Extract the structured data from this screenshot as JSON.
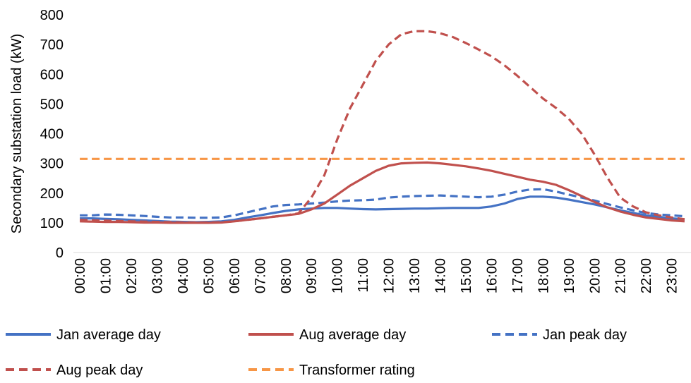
{
  "chart_data": {
    "type": "line",
    "title": "",
    "xlabel": "",
    "ylabel": "Secondary substation load (kW)",
    "ylim": [
      0,
      800
    ],
    "yticks": [
      0,
      100,
      200,
      300,
      400,
      500,
      600,
      700,
      800
    ],
    "grid": false,
    "legend_position": "bottom",
    "x": [
      "00:00",
      "00:30",
      "01:00",
      "01:30",
      "02:00",
      "02:30",
      "03:00",
      "03:30",
      "04:00",
      "04:30",
      "05:00",
      "05:30",
      "06:00",
      "06:30",
      "07:00",
      "07:30",
      "08:00",
      "08:30",
      "09:00",
      "09:30",
      "10:00",
      "10:30",
      "11:00",
      "11:30",
      "12:00",
      "12:30",
      "13:00",
      "13:30",
      "14:00",
      "14:30",
      "15:00",
      "15:30",
      "16:00",
      "16:30",
      "17:00",
      "17:30",
      "18:00",
      "18:30",
      "19:00",
      "19:30",
      "20:00",
      "20:30",
      "21:00",
      "21:30",
      "22:00",
      "22:30",
      "23:00",
      "23:30"
    ],
    "xticks": [
      "00:00",
      "01:00",
      "02:00",
      "03:00",
      "04:00",
      "05:00",
      "06:00",
      "07:00",
      "08:00",
      "09:00",
      "10:00",
      "11:00",
      "12:00",
      "13:00",
      "14:00",
      "15:00",
      "16:00",
      "17:00",
      "18:00",
      "19:00",
      "20:00",
      "21:00",
      "22:00",
      "23:00"
    ],
    "series": [
      {
        "name": "Jan average day",
        "color": "#4472C4",
        "dash": "solid",
        "values": [
          115,
          115,
          113,
          112,
          110,
          108,
          106,
          104,
          103,
          102,
          103,
          105,
          110,
          118,
          125,
          133,
          140,
          145,
          148,
          150,
          150,
          148,
          146,
          145,
          146,
          147,
          148,
          148,
          149,
          150,
          150,
          150,
          155,
          165,
          180,
          188,
          188,
          185,
          178,
          170,
          162,
          152,
          142,
          133,
          125,
          120,
          115,
          112
        ]
      },
      {
        "name": "Aug average day",
        "color": "#C0504D",
        "dash": "solid",
        "values": [
          105,
          104,
          103,
          103,
          102,
          101,
          101,
          100,
          100,
          100,
          100,
          101,
          105,
          110,
          115,
          120,
          125,
          130,
          145,
          165,
          195,
          225,
          250,
          275,
          292,
          300,
          302,
          303,
          300,
          295,
          290,
          283,
          275,
          265,
          255,
          245,
          238,
          228,
          210,
          190,
          170,
          152,
          138,
          127,
          118,
          113,
          108,
          105
        ]
      },
      {
        "name": "Jan peak day",
        "color": "#4472C4",
        "dash": "dashed",
        "values": [
          125,
          125,
          128,
          127,
          125,
          123,
          120,
          118,
          118,
          117,
          117,
          118,
          125,
          135,
          145,
          155,
          160,
          162,
          165,
          168,
          172,
          175,
          176,
          178,
          185,
          188,
          190,
          191,
          192,
          190,
          188,
          186,
          188,
          195,
          205,
          212,
          213,
          205,
          195,
          185,
          175,
          163,
          152,
          142,
          133,
          128,
          125,
          122
        ]
      },
      {
        "name": "Aug peak day",
        "color": "#C0504D",
        "dash": "dashed",
        "values": [
          110,
          108,
          107,
          106,
          105,
          104,
          103,
          102,
          101,
          101,
          101,
          102,
          105,
          110,
          115,
          120,
          125,
          132,
          185,
          260,
          380,
          485,
          565,
          645,
          700,
          735,
          745,
          745,
          738,
          725,
          705,
          683,
          660,
          630,
          595,
          557,
          518,
          487,
          450,
          400,
          330,
          252,
          185,
          155,
          135,
          125,
          118,
          112
        ]
      },
      {
        "name": "Transformer rating",
        "color": "#F79646",
        "dash": "dashed",
        "values": [
          315,
          315,
          315,
          315,
          315,
          315,
          315,
          315,
          315,
          315,
          315,
          315,
          315,
          315,
          315,
          315,
          315,
          315,
          315,
          315,
          315,
          315,
          315,
          315,
          315,
          315,
          315,
          315,
          315,
          315,
          315,
          315,
          315,
          315,
          315,
          315,
          315,
          315,
          315,
          315,
          315,
          315,
          315,
          315,
          315,
          315,
          315,
          315
        ]
      }
    ]
  }
}
